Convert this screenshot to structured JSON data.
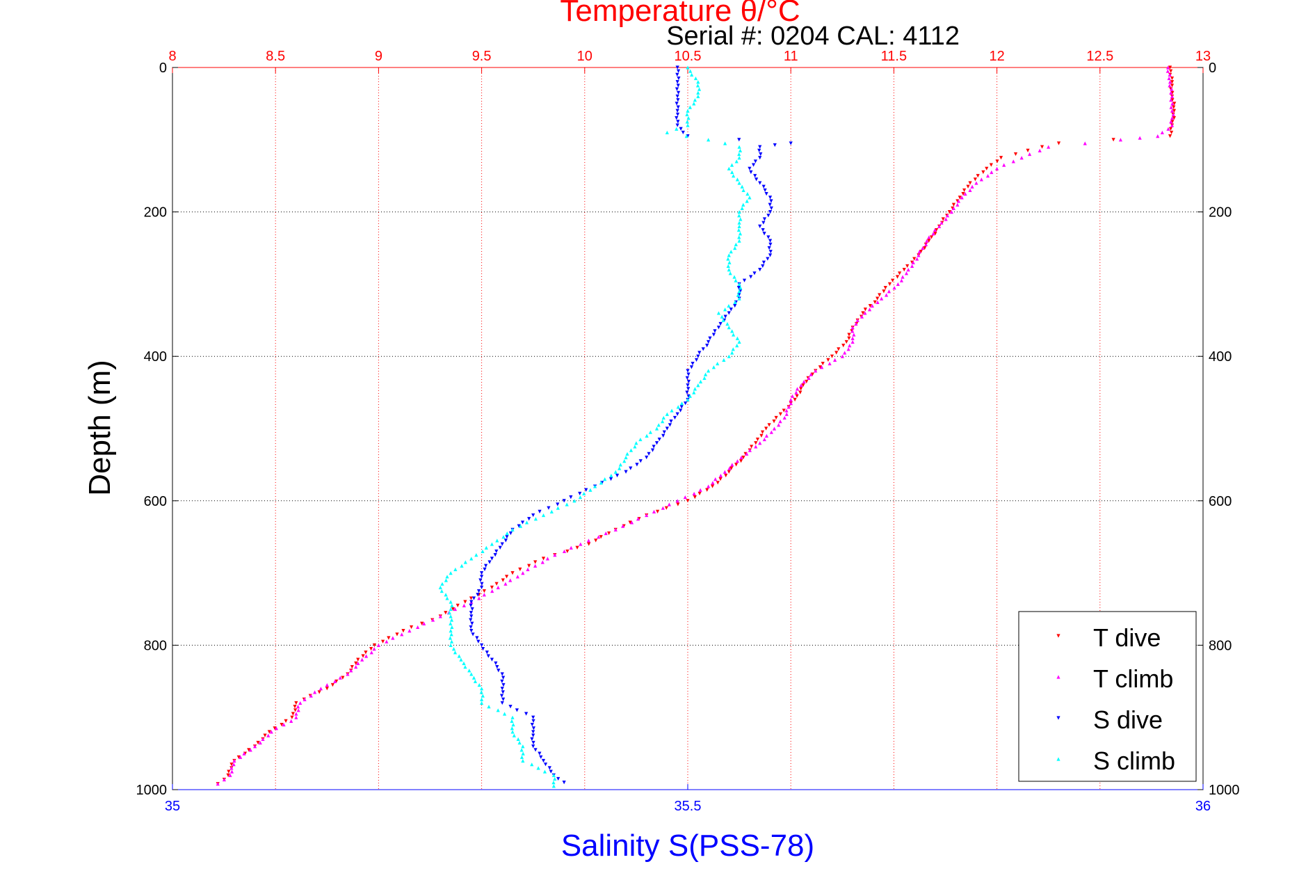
{
  "chart_data": {
    "type": "scatter",
    "title": "Temperature θ/°C",
    "annotation": "Serial #: 0204  CAL: 4112",
    "ylabel": "Depth (m)",
    "xlabel_bottom": "Salinity S(PSS-78)",
    "xlabel_top": "Temperature θ/°C",
    "axes": {
      "depth": {
        "lim": [
          0,
          1000
        ],
        "ticks": [
          0,
          200,
          400,
          600,
          800,
          1000
        ],
        "tick_labels": [
          "0",
          "200",
          "400",
          "600",
          "800",
          "1000"
        ],
        "reversed": true
      },
      "temperature": {
        "lim": [
          8,
          13
        ],
        "ticks": [
          8,
          8.5,
          9,
          9.5,
          10,
          10.5,
          11,
          11.5,
          12,
          12.5,
          13
        ],
        "tick_labels": [
          "8",
          "8.5",
          "9",
          "9.5",
          "10",
          "10.5",
          "11",
          "11.5",
          "12",
          "12.5",
          "13"
        ],
        "position": "top"
      },
      "salinity": {
        "lim": [
          35,
          36
        ],
        "ticks": [
          35,
          35.5,
          36
        ],
        "tick_labels": [
          "35",
          "35.5",
          "36"
        ],
        "position": "bottom"
      }
    },
    "grid": true,
    "legend_position": "bottom-right",
    "series": [
      {
        "name": "T dive",
        "axis": "temperature",
        "color": "#ff0000",
        "marker": "triangle-down",
        "points": [
          [
            0,
            12.84
          ],
          [
            20,
            12.85
          ],
          [
            40,
            12.85
          ],
          [
            60,
            12.86
          ],
          [
            80,
            12.85
          ],
          [
            95,
            12.84
          ],
          [
            105,
            12.3
          ],
          [
            115,
            12.15
          ],
          [
            125,
            12.02
          ],
          [
            140,
            11.95
          ],
          [
            160,
            11.87
          ],
          [
            180,
            11.82
          ],
          [
            200,
            11.77
          ],
          [
            220,
            11.72
          ],
          [
            240,
            11.67
          ],
          [
            260,
            11.62
          ],
          [
            280,
            11.55
          ],
          [
            300,
            11.48
          ],
          [
            320,
            11.42
          ],
          [
            340,
            11.35
          ],
          [
            360,
            11.3
          ],
          [
            380,
            11.27
          ],
          [
            400,
            11.2
          ],
          [
            420,
            11.12
          ],
          [
            440,
            11.06
          ],
          [
            460,
            11.02
          ],
          [
            480,
            10.95
          ],
          [
            500,
            10.88
          ],
          [
            520,
            10.83
          ],
          [
            540,
            10.77
          ],
          [
            560,
            10.7
          ],
          [
            580,
            10.62
          ],
          [
            600,
            10.5
          ],
          [
            620,
            10.3
          ],
          [
            640,
            10.15
          ],
          [
            660,
            10.02
          ],
          [
            680,
            9.8
          ],
          [
            700,
            9.65
          ],
          [
            720,
            9.55
          ],
          [
            740,
            9.42
          ],
          [
            760,
            9.3
          ],
          [
            780,
            9.12
          ],
          [
            800,
            8.98
          ],
          [
            820,
            8.9
          ],
          [
            840,
            8.85
          ],
          [
            860,
            8.75
          ],
          [
            880,
            8.6
          ],
          [
            900,
            8.58
          ],
          [
            920,
            8.47
          ],
          [
            940,
            8.4
          ],
          [
            960,
            8.3
          ],
          [
            980,
            8.27
          ],
          [
            992,
            8.22
          ]
        ]
      },
      {
        "name": "T climb",
        "axis": "temperature",
        "color": "#ff00ff",
        "marker": "triangle-up",
        "points": [
          [
            0,
            12.83
          ],
          [
            20,
            12.84
          ],
          [
            40,
            12.85
          ],
          [
            60,
            12.85
          ],
          [
            80,
            12.85
          ],
          [
            95,
            12.78
          ],
          [
            100,
            12.6
          ],
          [
            110,
            12.25
          ],
          [
            125,
            12.12
          ],
          [
            140,
            12.0
          ],
          [
            160,
            11.9
          ],
          [
            180,
            11.83
          ],
          [
            200,
            11.78
          ],
          [
            220,
            11.72
          ],
          [
            240,
            11.66
          ],
          [
            260,
            11.62
          ],
          [
            280,
            11.57
          ],
          [
            300,
            11.52
          ],
          [
            320,
            11.44
          ],
          [
            340,
            11.36
          ],
          [
            360,
            11.3
          ],
          [
            380,
            11.3
          ],
          [
            400,
            11.25
          ],
          [
            420,
            11.12
          ],
          [
            440,
            11.05
          ],
          [
            460,
            11.0
          ],
          [
            480,
            10.98
          ],
          [
            500,
            10.92
          ],
          [
            520,
            10.85
          ],
          [
            540,
            10.76
          ],
          [
            560,
            10.68
          ],
          [
            580,
            10.6
          ],
          [
            600,
            10.45
          ],
          [
            620,
            10.3
          ],
          [
            640,
            10.15
          ],
          [
            660,
            9.98
          ],
          [
            680,
            9.82
          ],
          [
            700,
            9.7
          ],
          [
            720,
            9.58
          ],
          [
            740,
            9.45
          ],
          [
            760,
            9.3
          ],
          [
            780,
            9.15
          ],
          [
            800,
            9.0
          ],
          [
            820,
            8.92
          ],
          [
            840,
            8.85
          ],
          [
            860,
            8.72
          ],
          [
            880,
            8.62
          ],
          [
            900,
            8.6
          ],
          [
            920,
            8.48
          ],
          [
            940,
            8.4
          ],
          [
            960,
            8.3
          ],
          [
            980,
            8.28
          ],
          [
            992,
            8.22
          ]
        ]
      },
      {
        "name": "S dive",
        "axis": "salinity",
        "color": "#0000ff",
        "marker": "triangle-down",
        "points": [
          [
            0,
            35.49
          ],
          [
            20,
            35.49
          ],
          [
            40,
            35.49
          ],
          [
            60,
            35.49
          ],
          [
            80,
            35.49
          ],
          [
            95,
            35.5
          ],
          [
            105,
            35.6
          ],
          [
            110,
            35.57
          ],
          [
            125,
            35.57
          ],
          [
            140,
            35.56
          ],
          [
            160,
            35.57
          ],
          [
            180,
            35.58
          ],
          [
            200,
            35.58
          ],
          [
            220,
            35.57
          ],
          [
            240,
            35.58
          ],
          [
            260,
            35.58
          ],
          [
            280,
            35.57
          ],
          [
            300,
            35.55
          ],
          [
            320,
            35.55
          ],
          [
            340,
            35.54
          ],
          [
            360,
            35.53
          ],
          [
            380,
            35.52
          ],
          [
            400,
            35.51
          ],
          [
            420,
            35.5
          ],
          [
            440,
            35.5
          ],
          [
            460,
            35.5
          ],
          [
            480,
            35.49
          ],
          [
            500,
            35.48
          ],
          [
            520,
            35.47
          ],
          [
            540,
            35.46
          ],
          [
            560,
            35.44
          ],
          [
            580,
            35.41
          ],
          [
            600,
            35.38
          ],
          [
            620,
            35.35
          ],
          [
            640,
            35.33
          ],
          [
            660,
            35.32
          ],
          [
            680,
            35.31
          ],
          [
            700,
            35.3
          ],
          [
            720,
            35.3
          ],
          [
            740,
            35.29
          ],
          [
            760,
            35.29
          ],
          [
            780,
            35.29
          ],
          [
            800,
            35.3
          ],
          [
            820,
            35.31
          ],
          [
            840,
            35.32
          ],
          [
            860,
            35.32
          ],
          [
            880,
            35.32
          ],
          [
            900,
            35.35
          ],
          [
            920,
            35.35
          ],
          [
            940,
            35.35
          ],
          [
            960,
            35.36
          ],
          [
            980,
            35.37
          ],
          [
            990,
            35.38
          ]
        ]
      },
      {
        "name": "S climb",
        "axis": "salinity",
        "color": "#00ffff",
        "marker": "triangle-up",
        "points": [
          [
            0,
            35.5
          ],
          [
            20,
            35.51
          ],
          [
            40,
            35.51
          ],
          [
            60,
            35.5
          ],
          [
            80,
            35.5
          ],
          [
            90,
            35.48
          ],
          [
            100,
            35.52
          ],
          [
            110,
            35.55
          ],
          [
            125,
            35.55
          ],
          [
            140,
            35.54
          ],
          [
            160,
            35.55
          ],
          [
            180,
            35.56
          ],
          [
            200,
            35.55
          ],
          [
            220,
            35.55
          ],
          [
            240,
            35.55
          ],
          [
            260,
            35.54
          ],
          [
            280,
            35.54
          ],
          [
            300,
            35.55
          ],
          [
            320,
            35.55
          ],
          [
            340,
            35.53
          ],
          [
            360,
            35.54
          ],
          [
            380,
            35.55
          ],
          [
            400,
            35.54
          ],
          [
            420,
            35.52
          ],
          [
            440,
            35.51
          ],
          [
            460,
            35.5
          ],
          [
            480,
            35.48
          ],
          [
            500,
            35.47
          ],
          [
            520,
            35.45
          ],
          [
            540,
            35.44
          ],
          [
            560,
            35.43
          ],
          [
            580,
            35.41
          ],
          [
            600,
            35.39
          ],
          [
            620,
            35.36
          ],
          [
            640,
            35.33
          ],
          [
            660,
            35.31
          ],
          [
            680,
            35.29
          ],
          [
            700,
            35.27
          ],
          [
            720,
            35.26
          ],
          [
            740,
            35.27
          ],
          [
            760,
            35.27
          ],
          [
            780,
            35.27
          ],
          [
            800,
            35.27
          ],
          [
            820,
            35.28
          ],
          [
            840,
            35.29
          ],
          [
            860,
            35.3
          ],
          [
            880,
            35.3
          ],
          [
            900,
            35.33
          ],
          [
            920,
            35.33
          ],
          [
            940,
            35.34
          ],
          [
            960,
            35.34
          ],
          [
            980,
            35.37
          ],
          [
            995,
            35.37
          ]
        ]
      }
    ]
  }
}
